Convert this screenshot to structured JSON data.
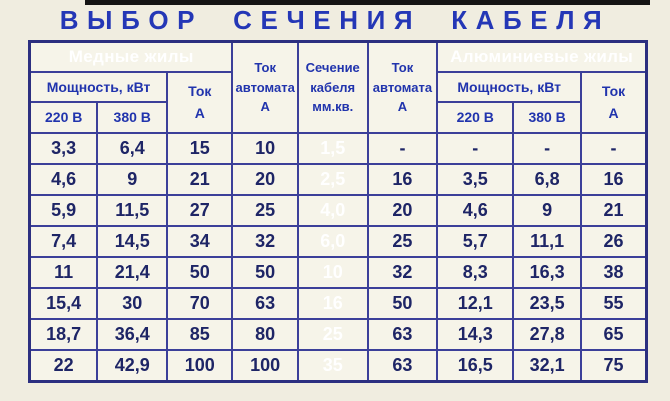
{
  "title": "ВЫБОР СЕЧЕНИЯ КАБЕЛЯ",
  "colors": {
    "band_blue": "#1e2bc3",
    "dark_column_navy": "#1d1979",
    "title_blue": "#2437b6",
    "header_text_blue": "#2134ad",
    "data_text_navy": "#1e2566",
    "background_cream": "#f0ede0",
    "grid_line": "#3b3f99"
  },
  "table": {
    "copper_band": "Медные жилы",
    "aluminum_band": "Алюминиевые жилы",
    "power_kw": "Мощность, кВт",
    "v220": "220 В",
    "v380": "380 В",
    "current": {
      "l1": "Ток",
      "l2": "А"
    },
    "breaker": {
      "l1": "Ток",
      "l2": "автомата",
      "l3": "А"
    },
    "section": {
      "l1": "Сечение",
      "l2": "кабеля",
      "l3": "мм.кв."
    },
    "rows": [
      [
        "3,3",
        "6,4",
        "15",
        "10",
        "1,5",
        "-",
        "-",
        "-",
        "-"
      ],
      [
        "4,6",
        "9",
        "21",
        "20",
        "2,5",
        "16",
        "3,5",
        "6,8",
        "16"
      ],
      [
        "5,9",
        "11,5",
        "27",
        "25",
        "4,0",
        "20",
        "4,6",
        "9",
        "21"
      ],
      [
        "7,4",
        "14,5",
        "34",
        "32",
        "6,0",
        "25",
        "5,7",
        "11,1",
        "26"
      ],
      [
        "11",
        "21,4",
        "50",
        "50",
        "10",
        "32",
        "8,3",
        "16,3",
        "38"
      ],
      [
        "15,4",
        "30",
        "70",
        "63",
        "16",
        "50",
        "12,1",
        "23,5",
        "55"
      ],
      [
        "18,7",
        "36,4",
        "85",
        "80",
        "25",
        "63",
        "14,3",
        "27,8",
        "65"
      ],
      [
        "22",
        "42,9",
        "100",
        "100",
        "35",
        "63",
        "16,5",
        "32,1",
        "75"
      ]
    ]
  }
}
